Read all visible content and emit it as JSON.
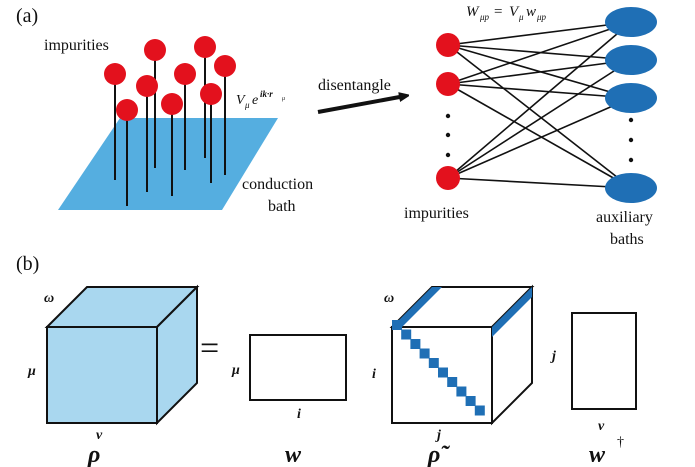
{
  "colors": {
    "impurity": "#e3111d",
    "bath_plane": "#55aee0",
    "aux_bath": "#1f6fb5",
    "cube_fill": "#a9d7ef",
    "diag_block": "#1f6fb5",
    "line": "#111111"
  },
  "panel_a": {
    "label": "(a)",
    "impurities_label": "impurities",
    "hybridization_label": "V",
    "hybridization_sub": "μ",
    "hybridization_exp": "e",
    "hybridization_sup": "ik·r",
    "hybridization_sup_sub": "μ",
    "bath_label_line1": "conduction",
    "bath_label_line2": "bath",
    "arrow_label": "disentangle",
    "coupling_eq": {
      "lhs": "W",
      "lhs_sub": "μp",
      "eq": " = ",
      "v": "V",
      "v_sub": "μ",
      "w": "w",
      "w_sub": "μp"
    },
    "right_impurities_label": "impurities",
    "aux_label_line1": "auxiliary",
    "aux_label_line2": "baths",
    "dots": "·"
  },
  "panel_b": {
    "label": "(b)",
    "equals": "=",
    "rho": {
      "top_label": "ω",
      "left_label": "μ",
      "bottom_label": "ν",
      "name": "ρ"
    },
    "w": {
      "left_label": "μ",
      "bottom_label": "i",
      "name": "w"
    },
    "rho_tilde": {
      "top_label": "ω",
      "left_label": "i",
      "bottom_label": "j",
      "name": "ρ̃"
    },
    "w_dagger": {
      "left_label": "j",
      "bottom_label": "ν",
      "name": "w",
      "dagger": "†"
    }
  }
}
